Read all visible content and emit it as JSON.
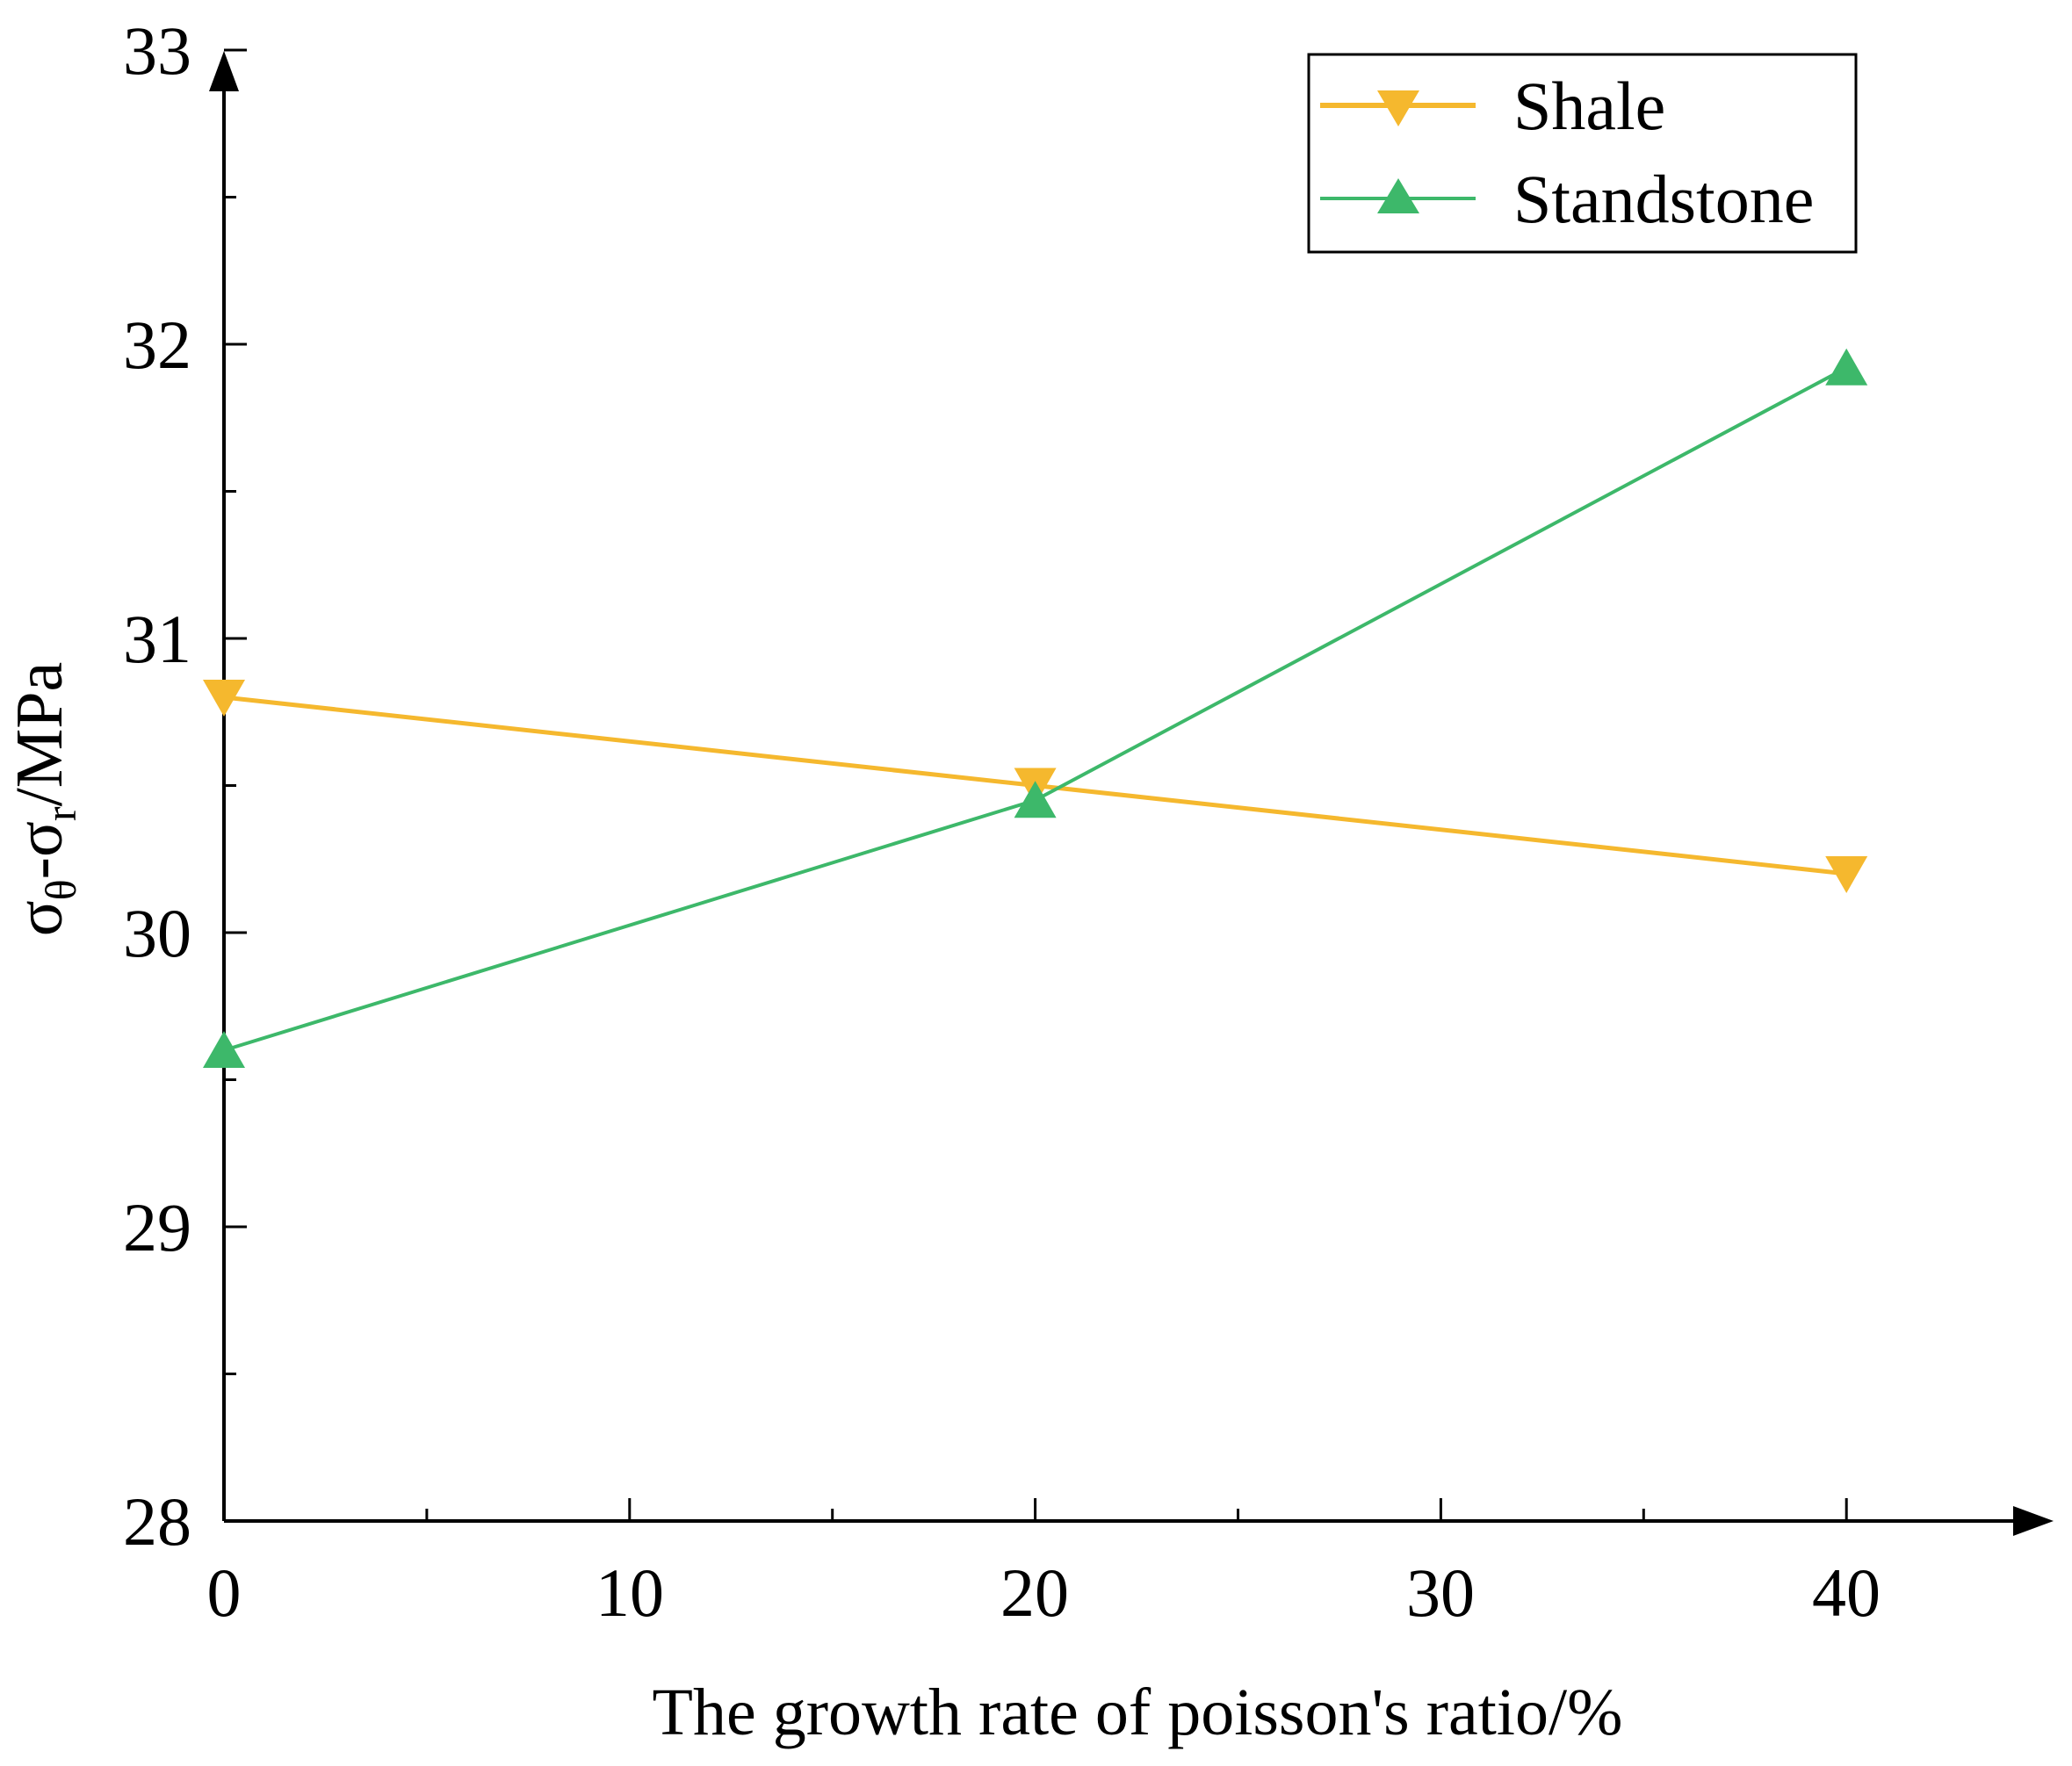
{
  "chart_data": {
    "type": "line",
    "title": "",
    "xlabel": "The growth rate of poisson's ratio/%",
    "ylabel": {
      "sigma1": "σ",
      "sub1": "θ",
      "dash": "-",
      "sigma2": "σ",
      "sub2": "r",
      "unit": "/MPa"
    },
    "xlim": [
      0,
      45
    ],
    "ylim": [
      28,
      33
    ],
    "x_ticks": [
      0,
      10,
      20,
      30,
      40
    ],
    "x_tick_labels": [
      "0",
      "10",
      "20",
      "30",
      "40"
    ],
    "y_ticks": [
      28,
      29,
      30,
      31,
      32,
      33
    ],
    "y_tick_labels": [
      "28",
      "29",
      "30",
      "31",
      "32",
      "33"
    ],
    "x": [
      0,
      20,
      40
    ],
    "series": [
      {
        "name": "Shale",
        "color": "#F5B82E",
        "marker": "triangle-down",
        "values": [
          30.8,
          30.5,
          30.2
        ]
      },
      {
        "name": "Standstone",
        "color": "#3DB86A",
        "marker": "triangle-up",
        "values": [
          29.6,
          30.45,
          31.92
        ]
      }
    ],
    "grid": false,
    "legend_position": "top-right"
  }
}
